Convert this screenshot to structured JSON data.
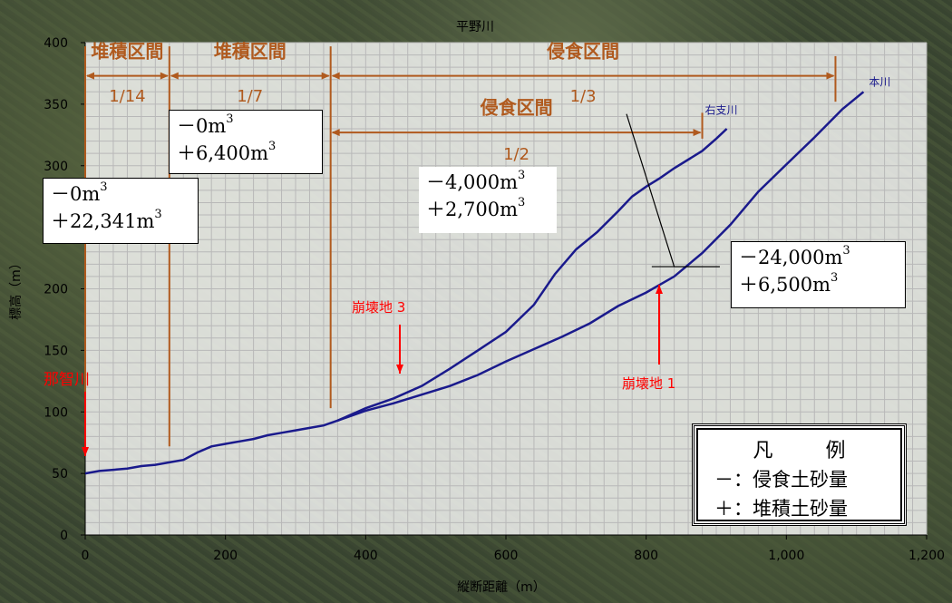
{
  "chart_data": {
    "type": "line",
    "title": "平野川",
    "xlabel": "縦断距離（m）",
    "ylabel": "標高（m）",
    "xlim": [
      0,
      1200
    ],
    "ylim": [
      0,
      400
    ],
    "x_ticks": [
      "0",
      "200",
      "400",
      "600",
      "800",
      "1,000",
      "1,200"
    ],
    "y_ticks": [
      "0",
      "50",
      "100",
      "150",
      "200",
      "250",
      "300",
      "350",
      "400"
    ],
    "grid": true,
    "series": [
      {
        "name": "本川",
        "color": "#1a1a8c",
        "points": [
          [
            0,
            50
          ],
          [
            20,
            52
          ],
          [
            40,
            53
          ],
          [
            60,
            54
          ],
          [
            80,
            56
          ],
          [
            100,
            57
          ],
          [
            120,
            59
          ],
          [
            140,
            61
          ],
          [
            160,
            67
          ],
          [
            180,
            72
          ],
          [
            200,
            74
          ],
          [
            220,
            76
          ],
          [
            240,
            78
          ],
          [
            260,
            81
          ],
          [
            280,
            83
          ],
          [
            300,
            85
          ],
          [
            320,
            87
          ],
          [
            340,
            89
          ],
          [
            360,
            93
          ],
          [
            400,
            101
          ],
          [
            440,
            107
          ],
          [
            480,
            114
          ],
          [
            520,
            121
          ],
          [
            560,
            130
          ],
          [
            600,
            141
          ],
          [
            640,
            151
          ],
          [
            680,
            161
          ],
          [
            720,
            172
          ],
          [
            760,
            186
          ],
          [
            800,
            197
          ],
          [
            840,
            210
          ],
          [
            880,
            229
          ],
          [
            920,
            252
          ],
          [
            960,
            279
          ],
          [
            1000,
            301
          ],
          [
            1040,
            323
          ],
          [
            1080,
            346
          ],
          [
            1110,
            360
          ]
        ]
      },
      {
        "name": "右支川",
        "color": "#1a1a8c",
        "points": [
          [
            360,
            93
          ],
          [
            400,
            103
          ],
          [
            440,
            111
          ],
          [
            480,
            121
          ],
          [
            520,
            135
          ],
          [
            560,
            150
          ],
          [
            600,
            165
          ],
          [
            640,
            187
          ],
          [
            670,
            212
          ],
          [
            700,
            232
          ],
          [
            730,
            246
          ],
          [
            760,
            263
          ],
          [
            780,
            275
          ],
          [
            800,
            283
          ],
          [
            820,
            290
          ],
          [
            840,
            298
          ],
          [
            860,
            305
          ],
          [
            880,
            312
          ],
          [
            900,
            322
          ],
          [
            915,
            330
          ]
        ]
      }
    ],
    "boundaries": [
      0,
      120,
      350
    ],
    "sections": [
      {
        "label": "堆積区間",
        "x0": 0,
        "x1": 120,
        "slope": "1/14"
      },
      {
        "label": "堆積区間",
        "x0": 120,
        "x1": 350,
        "slope": "1/7"
      },
      {
        "label": "侵食区間",
        "x0": 350,
        "x1": 1070,
        "slope": "1/3"
      },
      {
        "label": "侵食区間",
        "x0": 350,
        "x1": 880,
        "slope": "1/2"
      }
    ],
    "series_labels": [
      "本川",
      "右支川"
    ],
    "volume_boxes": [
      {
        "minus": "－0m",
        "plus": "＋22,341m"
      },
      {
        "minus": "－0m",
        "plus": "＋6,400m"
      },
      {
        "minus": "－4,000m",
        "plus": "＋2,700m"
      },
      {
        "minus": "－24,000m",
        "plus": "＋6,500m"
      }
    ],
    "annotations": [
      {
        "label": "那智川",
        "color": "#ff0000"
      },
      {
        "label": "崩壊地 3",
        "color": "#ff0000"
      },
      {
        "label": "崩壊地 1",
        "color": "#ff0000"
      }
    ],
    "legend": {
      "title": "凡　例",
      "minus_row": "－：侵食土砂量",
      "plus_row": "＋：堆積土砂量"
    }
  }
}
